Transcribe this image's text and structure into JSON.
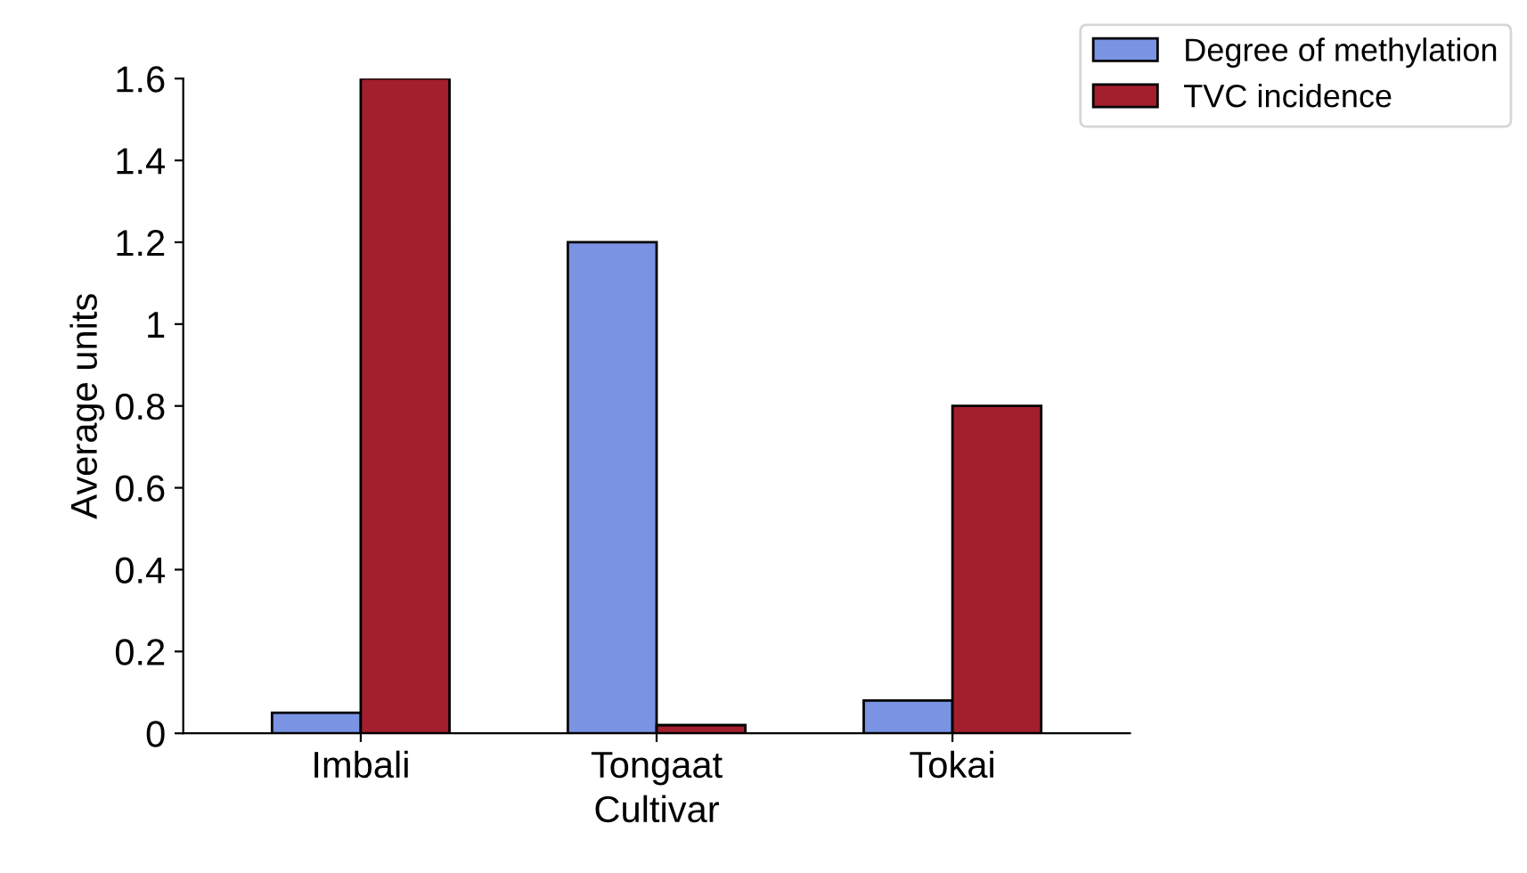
{
  "chart_data": {
    "type": "bar",
    "xlabel": "Cultivar",
    "ylabel": "Average units",
    "categories": [
      "Imbali",
      "Tongaat",
      "Tokai"
    ],
    "series": [
      {
        "name": "Degree of methylation",
        "color": "#7b93e3",
        "values": [
          0.05,
          1.2,
          0.08
        ]
      },
      {
        "name": "TVC incidence",
        "color": "#a31f2e",
        "values": [
          1.6,
          0.02,
          0.8
        ]
      }
    ],
    "ylim": [
      0,
      1.6
    ],
    "yticks": [
      0,
      0.2,
      0.4,
      0.6,
      0.8,
      1,
      1.2,
      1.4,
      1.6
    ],
    "grid": false,
    "legend": "top right"
  }
}
